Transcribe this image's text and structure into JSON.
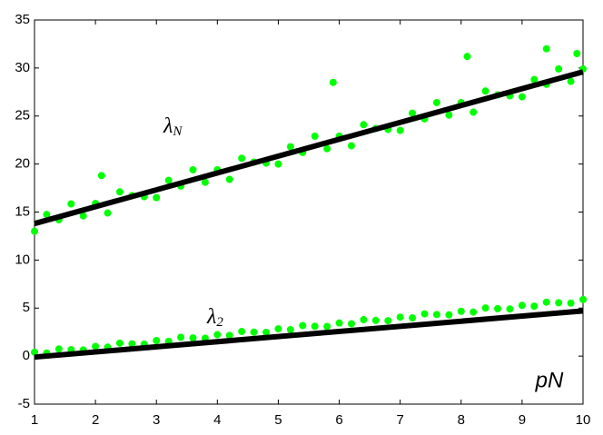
{
  "chart_data": {
    "type": "scatter",
    "xlabel": "pN",
    "xlim": [
      1,
      10
    ],
    "ylim": [
      -5,
      35
    ],
    "xticks": [
      1,
      2,
      3,
      4,
      5,
      6,
      7,
      8,
      9,
      10
    ],
    "yticks": [
      -5,
      0,
      5,
      10,
      15,
      20,
      25,
      30,
      35
    ],
    "grid": false,
    "annotations": [
      {
        "text": "λ",
        "sub": "N"
      },
      {
        "text": "λ",
        "sub": "2"
      }
    ],
    "series": [
      {
        "mode": "markers",
        "color": "#00ff00",
        "x": [
          1.0,
          1.2,
          1.4,
          1.6,
          1.8,
          2.0,
          2.2,
          2.4,
          2.6,
          2.8,
          3.0,
          3.2,
          3.4,
          3.6,
          3.8,
          4.0,
          4.2,
          4.4,
          4.6,
          4.8,
          5.0,
          5.2,
          5.4,
          5.6,
          5.8,
          6.0,
          6.2,
          6.4,
          6.6,
          6.8,
          7.0,
          7.2,
          7.4,
          7.6,
          7.8,
          8.0,
          8.2,
          8.4,
          8.6,
          8.8,
          9.0,
          9.2,
          9.4,
          9.6,
          9.8,
          10.0,
          5.9,
          8.1,
          9.4,
          2.1,
          9.9
        ],
        "values": [
          13.0,
          14.75,
          14.2,
          15.85,
          14.6,
          15.9,
          14.9,
          17.1,
          16.7,
          16.6,
          16.5,
          18.3,
          17.7,
          19.4,
          18.1,
          19.4,
          18.4,
          20.6,
          20.2,
          20.1,
          20.0,
          21.8,
          21.2,
          22.9,
          21.6,
          22.9,
          21.9,
          24.1,
          23.7,
          23.6,
          23.5,
          25.3,
          24.7,
          26.4,
          25.1,
          26.4,
          25.4,
          27.6,
          27.2,
          27.1,
          27.0,
          28.8,
          28.3,
          29.9,
          28.6,
          29.9,
          28.5,
          31.2,
          32.0,
          18.8,
          31.5
        ]
      },
      {
        "mode": "markers",
        "color": "#00ff00",
        "x": [
          1.0,
          1.2,
          1.4,
          1.6,
          1.8,
          2.0,
          2.2,
          2.4,
          2.6,
          2.8,
          3.0,
          3.2,
          3.4,
          3.6,
          3.8,
          4.0,
          4.2,
          4.4,
          4.6,
          4.8,
          5.0,
          5.2,
          5.4,
          5.6,
          5.8,
          6.0,
          6.2,
          6.4,
          6.6,
          6.8,
          7.0,
          7.2,
          7.4,
          7.6,
          7.8,
          8.0,
          8.2,
          8.4,
          8.6,
          8.8,
          9.0,
          9.2,
          9.4,
          9.6,
          9.8,
          10.0
        ],
        "values": [
          0.4,
          0.32,
          0.74,
          0.67,
          0.64,
          1.01,
          0.93,
          1.35,
          1.28,
          1.25,
          1.62,
          1.54,
          1.96,
          1.89,
          1.86,
          2.23,
          2.15,
          2.57,
          2.5,
          2.47,
          2.84,
          2.76,
          3.18,
          3.11,
          3.08,
          3.45,
          3.37,
          3.79,
          3.72,
          3.69,
          4.06,
          3.98,
          4.4,
          4.33,
          4.3,
          4.67,
          4.59,
          5.01,
          4.94,
          4.91,
          5.28,
          5.2,
          5.62,
          5.55,
          5.52,
          5.89
        ]
      },
      {
        "mode": "line",
        "color": "#000000",
        "x": [
          1,
          10
        ],
        "values": [
          13.8,
          29.6
        ]
      },
      {
        "mode": "line",
        "color": "#000000",
        "x": [
          1,
          10
        ],
        "values": [
          -0.1,
          4.7
        ]
      }
    ]
  }
}
